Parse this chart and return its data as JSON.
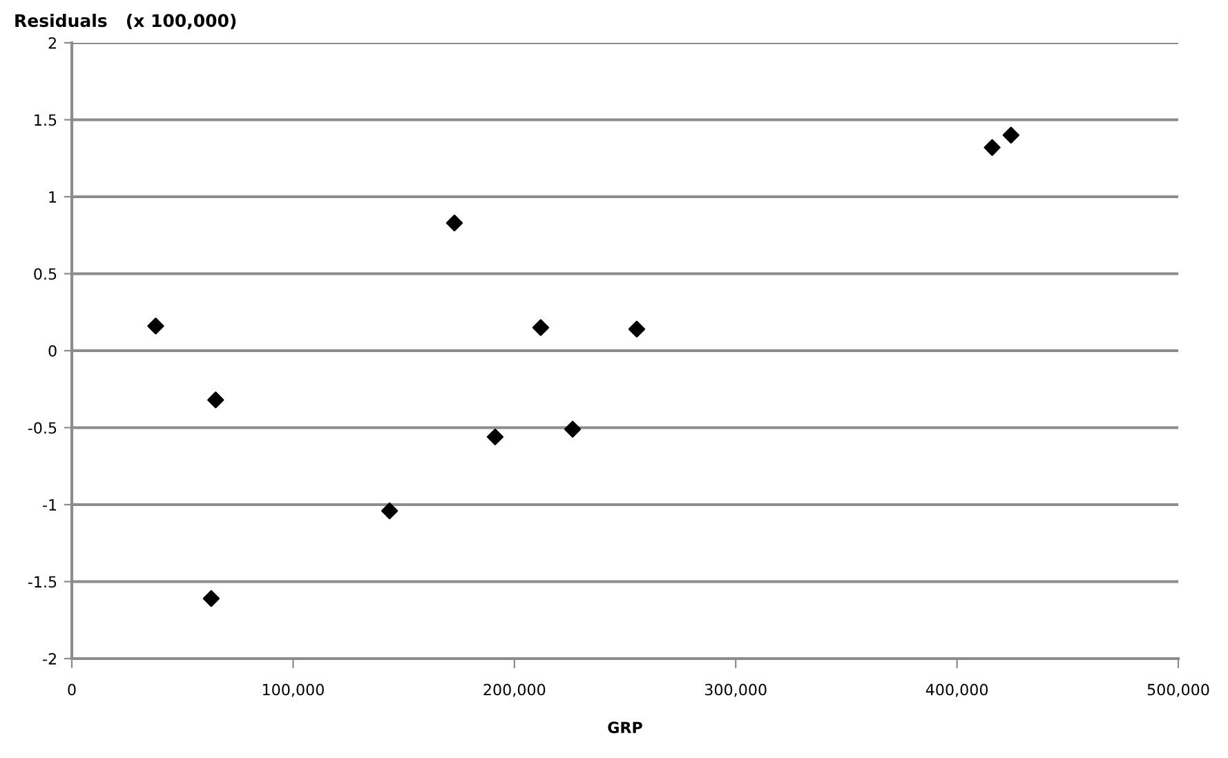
{
  "chart_data": {
    "type": "scatter",
    "ylabel": "Residuals   (x 100,000)",
    "xlabel": "GRP",
    "x": [
      37900,
      65000,
      63000,
      143600,
      172900,
      191300,
      211900,
      226300,
      255300,
      415900,
      424400
    ],
    "series": [
      {
        "color": "#000000",
        "values": [
          0.16,
          -0.32,
          -1.61,
          -1.04,
          0.83,
          -0.56,
          0.15,
          -0.51,
          0.14,
          1.32,
          1.4
        ]
      }
    ],
    "xlim": [
      0,
      500000
    ],
    "xticks": [
      0,
      {
        "value": 100000,
        "label": "100,000"
      },
      {
        "value": 200000,
        "label": "200,000"
      },
      {
        "value": 300000,
        "label": "300,000"
      },
      {
        "value": 400000,
        "label": "400,000"
      },
      {
        "value": 500000,
        "label": "500,000"
      }
    ],
    "ylim": [
      -2,
      2
    ],
    "yticks": [
      -2,
      -1.5,
      -1,
      -0.5,
      0,
      0.5,
      1,
      1.5,
      2
    ],
    "grid": "y",
    "marker": "diamond",
    "legend": false
  }
}
